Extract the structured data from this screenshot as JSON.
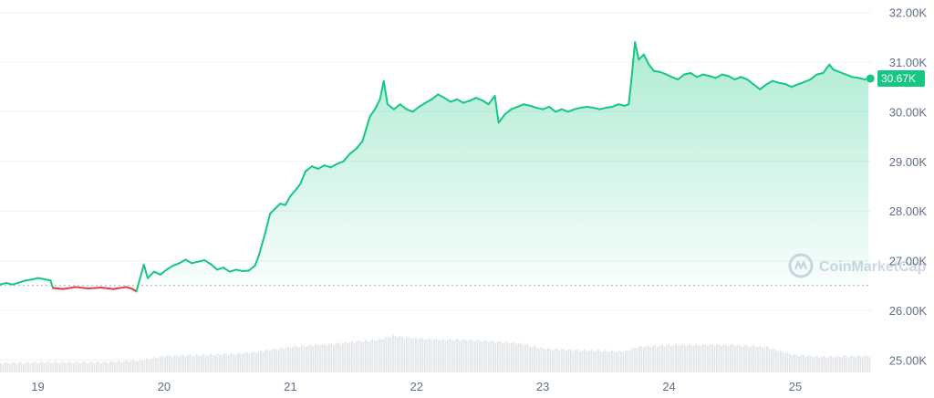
{
  "watermark": {
    "text": "CoinMarketCap",
    "icon": "coinmarketcap-logo-icon"
  },
  "current_price": {
    "label": "30.67K",
    "value": 30670,
    "color": "#16c784"
  },
  "colors": {
    "up": "#16c784",
    "down": "#ea3943",
    "grid": "#eff2f5",
    "volume": "#e3e6ea",
    "baseline": "#a6b0c3"
  },
  "chart_data": {
    "type": "area",
    "title": "",
    "xlabel": "",
    "ylabel": "",
    "ylim": [
      24750,
      32250
    ],
    "xlim": [
      18.7,
      25.6
    ],
    "y_ticks": [
      {
        "value": 25000,
        "label": "25.00K"
      },
      {
        "value": 26000,
        "label": "26.00K"
      },
      {
        "value": 27000,
        "label": "27.00K"
      },
      {
        "value": 28000,
        "label": "28.00K"
      },
      {
        "value": 29000,
        "label": "29.00K"
      },
      {
        "value": 30000,
        "label": "30.00K"
      },
      {
        "value": 31000,
        "label": "31.00K"
      },
      {
        "value": 32000,
        "label": "32.00K"
      }
    ],
    "x_ticks": [
      {
        "value": 19,
        "label": "19"
      },
      {
        "value": 20,
        "label": "20"
      },
      {
        "value": 21,
        "label": "21"
      },
      {
        "value": 22,
        "label": "22"
      },
      {
        "value": 23,
        "label": "23"
      },
      {
        "value": 24,
        "label": "24"
      },
      {
        "value": 25,
        "label": "25"
      }
    ],
    "baseline_price": 26500,
    "series": [
      {
        "values": [
          [
            18.7,
            26520
          ],
          [
            18.75,
            26550
          ],
          [
            18.8,
            26520
          ],
          [
            18.85,
            26560
          ],
          [
            18.9,
            26600
          ],
          [
            18.95,
            26620
          ],
          [
            19.0,
            26650
          ],
          [
            19.05,
            26630
          ],
          [
            19.1,
            26600
          ],
          [
            19.12,
            26450
          ],
          [
            19.2,
            26430
          ],
          [
            19.3,
            26470
          ],
          [
            19.4,
            26440
          ],
          [
            19.5,
            26460
          ],
          [
            19.6,
            26430
          ],
          [
            19.7,
            26470
          ],
          [
            19.75,
            26430
          ],
          [
            19.78,
            26380
          ],
          [
            19.8,
            26560
          ],
          [
            19.84,
            26920
          ],
          [
            19.87,
            26650
          ],
          [
            19.92,
            26780
          ],
          [
            19.97,
            26720
          ],
          [
            20.02,
            26820
          ],
          [
            20.07,
            26900
          ],
          [
            20.12,
            26950
          ],
          [
            20.17,
            27020
          ],
          [
            20.22,
            26950
          ],
          [
            20.27,
            26980
          ],
          [
            20.32,
            27010
          ],
          [
            20.37,
            26930
          ],
          [
            20.42,
            26820
          ],
          [
            20.47,
            26860
          ],
          [
            20.52,
            26780
          ],
          [
            20.57,
            26820
          ],
          [
            20.62,
            26790
          ],
          [
            20.67,
            26800
          ],
          [
            20.72,
            26900
          ],
          [
            20.75,
            27100
          ],
          [
            20.8,
            27550
          ],
          [
            20.84,
            27950
          ],
          [
            20.88,
            28050
          ],
          [
            20.92,
            28150
          ],
          [
            20.96,
            28120
          ],
          [
            21.0,
            28300
          ],
          [
            21.05,
            28450
          ],
          [
            21.08,
            28550
          ],
          [
            21.12,
            28800
          ],
          [
            21.17,
            28900
          ],
          [
            21.22,
            28850
          ],
          [
            21.27,
            28920
          ],
          [
            21.32,
            28880
          ],
          [
            21.37,
            28950
          ],
          [
            21.42,
            29000
          ],
          [
            21.47,
            29150
          ],
          [
            21.52,
            29250
          ],
          [
            21.57,
            29400
          ],
          [
            21.6,
            29650
          ],
          [
            21.63,
            29900
          ],
          [
            21.67,
            30050
          ],
          [
            21.71,
            30250
          ],
          [
            21.74,
            30620
          ],
          [
            21.77,
            30150
          ],
          [
            21.82,
            30050
          ],
          [
            21.87,
            30150
          ],
          [
            21.92,
            30050
          ],
          [
            21.97,
            30000
          ],
          [
            22.02,
            30100
          ],
          [
            22.07,
            30180
          ],
          [
            22.12,
            30250
          ],
          [
            22.17,
            30350
          ],
          [
            22.22,
            30280
          ],
          [
            22.27,
            30200
          ],
          [
            22.32,
            30250
          ],
          [
            22.37,
            30180
          ],
          [
            22.42,
            30220
          ],
          [
            22.47,
            30280
          ],
          [
            22.52,
            30230
          ],
          [
            22.57,
            30150
          ],
          [
            22.62,
            30320
          ],
          [
            22.65,
            29780
          ],
          [
            22.7,
            29950
          ],
          [
            22.75,
            30050
          ],
          [
            22.8,
            30100
          ],
          [
            22.85,
            30150
          ],
          [
            22.9,
            30120
          ],
          [
            22.95,
            30080
          ],
          [
            23.0,
            30050
          ],
          [
            23.05,
            30100
          ],
          [
            23.1,
            30000
          ],
          [
            23.15,
            30050
          ],
          [
            23.2,
            30000
          ],
          [
            23.25,
            30050
          ],
          [
            23.3,
            30080
          ],
          [
            23.35,
            30100
          ],
          [
            23.4,
            30080
          ],
          [
            23.45,
            30050
          ],
          [
            23.5,
            30080
          ],
          [
            23.55,
            30100
          ],
          [
            23.6,
            30150
          ],
          [
            23.65,
            30120
          ],
          [
            23.68,
            30150
          ],
          [
            23.7,
            30600
          ],
          [
            23.73,
            31400
          ],
          [
            23.76,
            31050
          ],
          [
            23.8,
            31150
          ],
          [
            23.84,
            30950
          ],
          [
            23.88,
            30820
          ],
          [
            23.93,
            30800
          ],
          [
            23.98,
            30750
          ],
          [
            24.02,
            30700
          ],
          [
            24.07,
            30650
          ],
          [
            24.12,
            30750
          ],
          [
            24.17,
            30780
          ],
          [
            24.22,
            30700
          ],
          [
            24.27,
            30750
          ],
          [
            24.32,
            30720
          ],
          [
            24.37,
            30680
          ],
          [
            24.42,
            30750
          ],
          [
            24.47,
            30720
          ],
          [
            24.52,
            30650
          ],
          [
            24.57,
            30700
          ],
          [
            24.62,
            30650
          ],
          [
            24.67,
            30550
          ],
          [
            24.72,
            30450
          ],
          [
            24.77,
            30550
          ],
          [
            24.82,
            30620
          ],
          [
            24.87,
            30580
          ],
          [
            24.92,
            30560
          ],
          [
            24.97,
            30500
          ],
          [
            25.02,
            30550
          ],
          [
            25.07,
            30600
          ],
          [
            25.12,
            30650
          ],
          [
            25.17,
            30750
          ],
          [
            25.22,
            30780
          ],
          [
            25.27,
            30950
          ],
          [
            25.3,
            30850
          ],
          [
            25.35,
            30800
          ],
          [
            25.4,
            30750
          ],
          [
            25.45,
            30700
          ],
          [
            25.5,
            30680
          ],
          [
            25.55,
            30650
          ],
          [
            25.58,
            30670
          ]
        ]
      }
    ],
    "volume": [
      [
        18.7,
        0.1
      ],
      [
        19.0,
        0.11
      ],
      [
        19.5,
        0.11
      ],
      [
        19.8,
        0.13
      ],
      [
        20.0,
        0.18
      ],
      [
        20.5,
        0.2
      ],
      [
        20.7,
        0.22
      ],
      [
        21.0,
        0.28
      ],
      [
        21.4,
        0.32
      ],
      [
        21.7,
        0.36
      ],
      [
        21.8,
        0.4
      ],
      [
        22.0,
        0.37
      ],
      [
        22.5,
        0.35
      ],
      [
        22.8,
        0.32
      ],
      [
        23.0,
        0.26
      ],
      [
        23.3,
        0.24
      ],
      [
        23.65,
        0.23
      ],
      [
        23.75,
        0.28
      ],
      [
        24.0,
        0.3
      ],
      [
        24.5,
        0.3
      ],
      [
        24.75,
        0.28
      ],
      [
        25.0,
        0.19
      ],
      [
        25.2,
        0.17
      ],
      [
        25.5,
        0.18
      ],
      [
        25.6,
        0.18
      ]
    ]
  }
}
